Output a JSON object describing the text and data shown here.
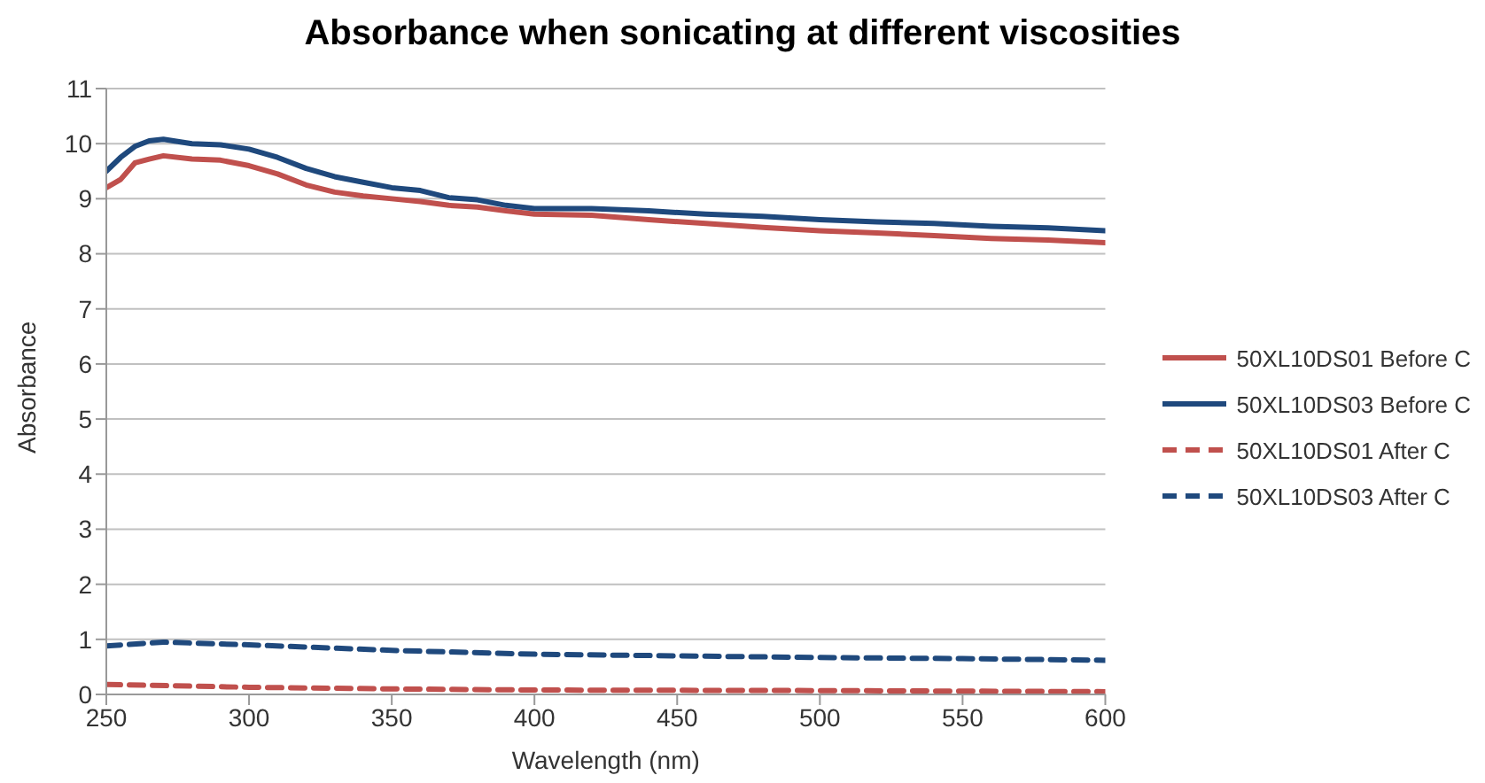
{
  "chart_data": {
    "type": "line",
    "title": "Absorbance when sonicating at different viscosities",
    "xlabel": "Wavelength (nm)",
    "ylabel": "Absorbance",
    "xlim": [
      250,
      600
    ],
    "xticks": [
      250,
      300,
      350,
      400,
      450,
      500,
      550,
      600
    ],
    "ylim": [
      0,
      11
    ],
    "yticks": [
      0,
      1,
      2,
      3,
      4,
      5,
      6,
      7,
      8,
      9,
      10,
      11
    ],
    "grid": "y",
    "legend": "right",
    "marker": "none",
    "series": [
      {
        "name": "50XL10DS01 Before C",
        "color": "#c0504d",
        "line_style": "solid",
        "x": [
          250,
          255,
          260,
          265,
          270,
          280,
          290,
          300,
          310,
          320,
          330,
          340,
          350,
          360,
          370,
          380,
          390,
          400,
          420,
          440,
          460,
          480,
          500,
          520,
          540,
          560,
          580,
          600
        ],
        "values": [
          9.2,
          9.35,
          9.65,
          9.72,
          9.78,
          9.72,
          9.7,
          9.6,
          9.45,
          9.25,
          9.12,
          9.05,
          9.0,
          8.95,
          8.88,
          8.85,
          8.78,
          8.72,
          8.7,
          8.62,
          8.55,
          8.48,
          8.42,
          8.38,
          8.33,
          8.28,
          8.25,
          8.2
        ]
      },
      {
        "name": "50XL10DS03 Before C",
        "color": "#1f497d",
        "line_style": "solid",
        "x": [
          250,
          255,
          260,
          265,
          270,
          280,
          290,
          300,
          310,
          320,
          330,
          340,
          350,
          360,
          370,
          380,
          390,
          400,
          420,
          440,
          460,
          480,
          500,
          520,
          540,
          560,
          580,
          600
        ],
        "values": [
          9.5,
          9.75,
          9.95,
          10.05,
          10.08,
          10.0,
          9.98,
          9.9,
          9.75,
          9.55,
          9.4,
          9.3,
          9.2,
          9.15,
          9.02,
          8.98,
          8.88,
          8.82,
          8.82,
          8.78,
          8.72,
          8.68,
          8.62,
          8.58,
          8.55,
          8.5,
          8.47,
          8.42
        ]
      },
      {
        "name": "50XL10DS01 After C",
        "color": "#c0504d",
        "line_style": "dashed",
        "x": [
          250,
          300,
          350,
          400,
          500,
          600
        ],
        "values": [
          0.18,
          0.13,
          0.1,
          0.08,
          0.07,
          0.05
        ]
      },
      {
        "name": "50XL10DS03 After C",
        "color": "#1f497d",
        "line_style": "dashed",
        "x": [
          250,
          270,
          300,
          350,
          400,
          450,
          500,
          550,
          600
        ],
        "values": [
          0.88,
          0.95,
          0.9,
          0.8,
          0.73,
          0.7,
          0.67,
          0.65,
          0.62
        ]
      }
    ]
  }
}
